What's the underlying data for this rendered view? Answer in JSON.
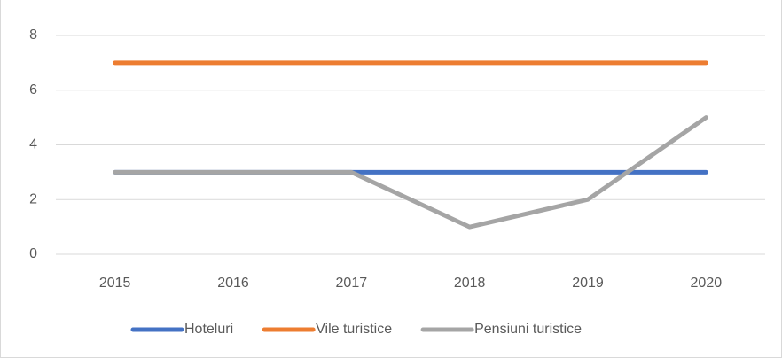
{
  "chart_data": {
    "type": "line",
    "categories": [
      "2015",
      "2016",
      "2017",
      "2018",
      "2019",
      "2020"
    ],
    "series": [
      {
        "name": "Hoteluri",
        "color": "#4472c4",
        "values": [
          3,
          3,
          3,
          3,
          3,
          3
        ]
      },
      {
        "name": "Vile turistice",
        "color": "#ed7d31",
        "values": [
          7,
          7,
          7,
          7,
          7,
          7
        ]
      },
      {
        "name": "Pensiuni turistice",
        "color": "#a5a5a5",
        "values": [
          3,
          3,
          3,
          1,
          2,
          5
        ]
      }
    ],
    "ylim": [
      0,
      8
    ],
    "yticks": [
      0,
      2,
      4,
      6,
      8
    ],
    "grid": true,
    "legend": "bottom"
  }
}
